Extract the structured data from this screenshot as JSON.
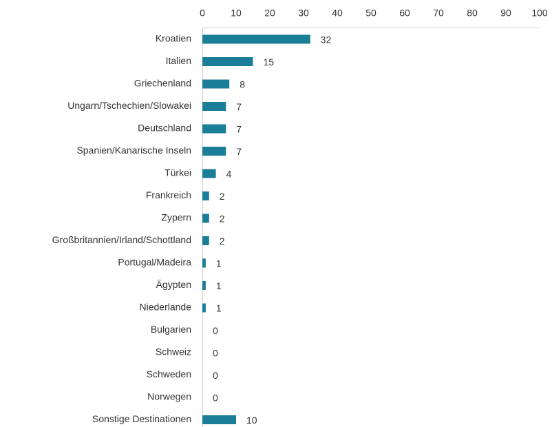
{
  "chart_data": {
    "type": "bar",
    "orientation": "horizontal",
    "categories": [
      "Kroatien",
      "Italien",
      "Griechenland",
      "Ungarn/Tschechien/Slowakei",
      "Deutschland",
      "Spanien/Kanarische Inseln",
      "Türkei",
      "Frankreich",
      "Zypern",
      "Großbritannien/Irland/Schottland",
      "Portugal/Madeira",
      "Ägypten",
      "Niederlande",
      "Bulgarien",
      "Schweiz",
      "Schweden",
      "Norwegen",
      "Sonstige Destinationen"
    ],
    "values": [
      32,
      15,
      8,
      7,
      7,
      7,
      4,
      2,
      2,
      2,
      1,
      1,
      1,
      0,
      0,
      0,
      0,
      10
    ],
    "color": "#1a7e98",
    "xlim": [
      0,
      100
    ],
    "xticks": [
      0,
      10,
      20,
      30,
      40,
      50,
      60,
      70,
      80,
      90,
      100
    ],
    "grid": false
  }
}
